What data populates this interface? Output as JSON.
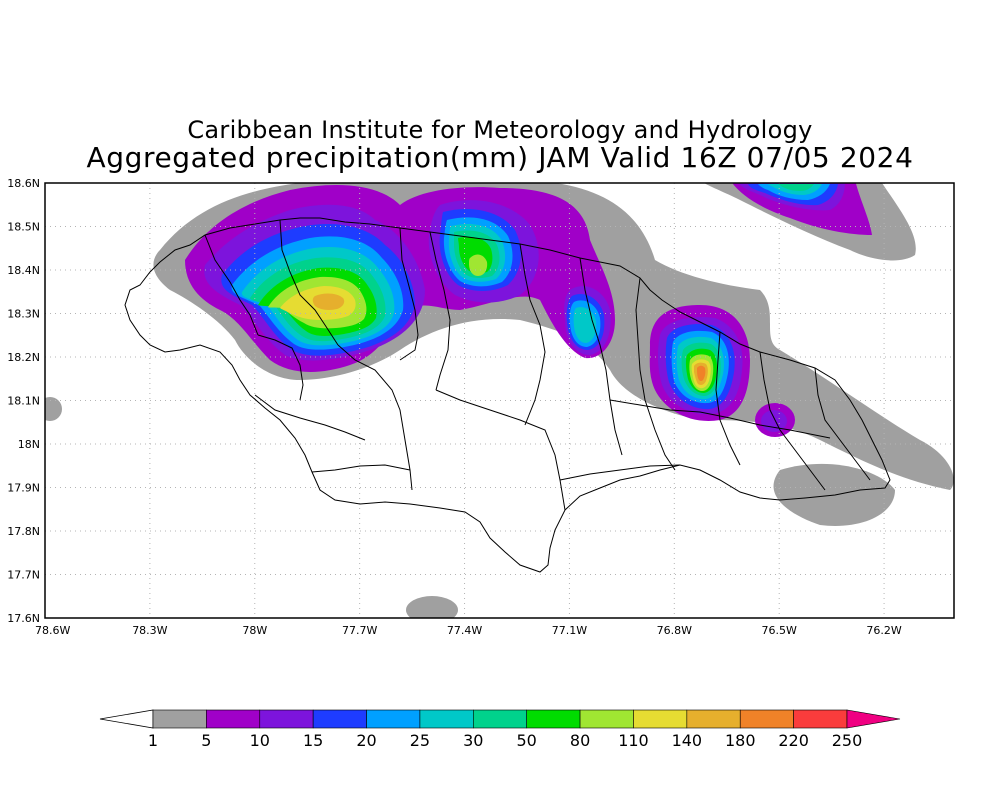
{
  "title": {
    "line1": "Caribbean Institute for Meteorology and Hydrology",
    "line2": "Aggregated precipitation(mm) JAM Valid 16Z 07/05 2024"
  },
  "map": {
    "region": "Jamaica",
    "lon_range": [
      -78.6,
      -76.0
    ],
    "lat_range": [
      17.6,
      18.6
    ],
    "grid": true,
    "x_tick_labels": [
      "78.6W",
      "78.3W",
      "78W",
      "77.7W",
      "77.4W",
      "77.1W",
      "76.8W",
      "76.5W",
      "76.2W"
    ],
    "y_tick_labels": [
      "18.6N",
      "18.5N",
      "18.4N",
      "18.3N",
      "18.2N",
      "18.1N",
      "18N",
      "17.9N",
      "17.8N",
      "17.7N",
      "17.6N"
    ]
  },
  "colorbar": {
    "labels": [
      "1",
      "5",
      "10",
      "15",
      "20",
      "25",
      "30",
      "50",
      "80",
      "110",
      "140",
      "180",
      "220",
      "250"
    ],
    "colors": [
      "#a0a0a0",
      "#a000c8",
      "#7d14dc",
      "#1e3cff",
      "#00a0ff",
      "#00c8c8",
      "#00d28c",
      "#00dc00",
      "#a0e632",
      "#e6dc32",
      "#e6af2d",
      "#f08228",
      "#fa3c3c",
      "#f00082"
    ]
  }
}
